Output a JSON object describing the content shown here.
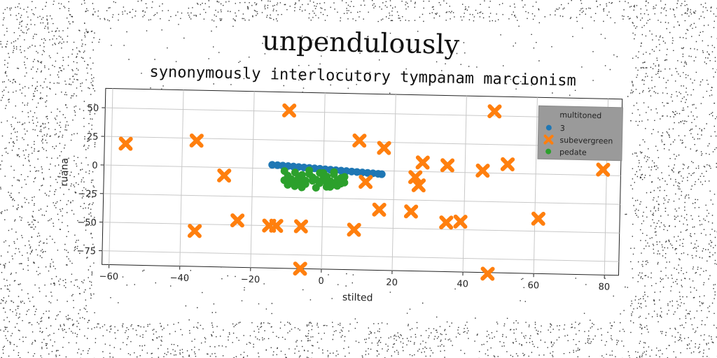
{
  "chart_data": {
    "type": "scatter",
    "title": "unpendulously",
    "subtitle": "synonymously interlocutory tympanam marcionism",
    "xlabel": "stilted",
    "ylabel": "ruana",
    "xlim": [
      -62,
      84
    ],
    "ylim": [
      -87,
      67
    ],
    "xticks": [
      -60,
      -40,
      -20,
      0,
      20,
      40,
      60,
      80
    ],
    "yticks": [
      -75,
      -50,
      -25,
      0,
      25,
      50
    ],
    "grid": true,
    "legend": {
      "title": "multitoned",
      "position": "top-right"
    },
    "colors": {
      "3": "#1f77b4",
      "subevergreen": "#ff7f0e",
      "pedate": "#2ca02c"
    },
    "series": [
      {
        "name": "3",
        "marker": "circle",
        "x": [
          -14.5,
          -13,
          -11.5,
          -10,
          -8.5,
          -7,
          -5.5,
          -4,
          -2.5,
          -1,
          0.5,
          2,
          3.5,
          5,
          6.5,
          8,
          9.5,
          11,
          12.5,
          14,
          15.5,
          16.5
        ],
        "y": [
          3.2,
          3.0,
          2.7,
          2.4,
          2.1,
          1.8,
          1.5,
          1.2,
          0.9,
          0.6,
          0.3,
          0.0,
          -0.3,
          -0.6,
          -0.9,
          -1.2,
          -1.5,
          -1.8,
          -2.1,
          -2.4,
          -2.7,
          -3.0
        ]
      },
      {
        "name": "subevergreen",
        "marker": "x",
        "x": [
          -56,
          -36,
          -28,
          -10,
          10,
          17,
          28,
          35,
          45,
          52,
          79,
          48,
          -36,
          -24,
          -15,
          -13,
          -6,
          -6,
          9,
          12,
          16,
          25,
          26,
          27,
          35,
          39,
          47,
          61
        ],
        "y": [
          19,
          23,
          -7,
          51,
          26,
          20,
          8,
          6,
          2,
          8,
          5,
          54,
          -56,
          -46,
          -50,
          -50,
          -50,
          -87,
          -52,
          -10,
          -34,
          -35,
          -5,
          -12,
          -44,
          -43,
          -88,
          -39
        ]
      },
      {
        "name": "pedate",
        "marker": "circle",
        "x": [
          -11,
          -10,
          -9,
          -8,
          -7,
          -6,
          -5,
          -4,
          -3,
          -2,
          -1,
          0,
          1,
          2,
          3,
          4,
          5,
          6,
          -9,
          -7,
          -5,
          -3,
          -1,
          1,
          3,
          5,
          -8,
          -6,
          -2,
          2,
          4,
          -10,
          0,
          6,
          -4,
          3,
          -11,
          -6,
          1,
          5
        ],
        "y": [
          -2,
          -6,
          -9,
          -3,
          -8,
          -5,
          -10,
          -4,
          -7,
          -9,
          -3,
          -8,
          -6,
          -10,
          -4,
          -9,
          -7,
          -11,
          -12,
          -11,
          -13,
          -10,
          -12,
          -11,
          -13,
          -12,
          -15,
          -14,
          -16,
          -15,
          -14,
          -14,
          -3,
          -6,
          -1,
          -2,
          -10,
          -16,
          -15,
          -9
        ]
      }
    ]
  }
}
